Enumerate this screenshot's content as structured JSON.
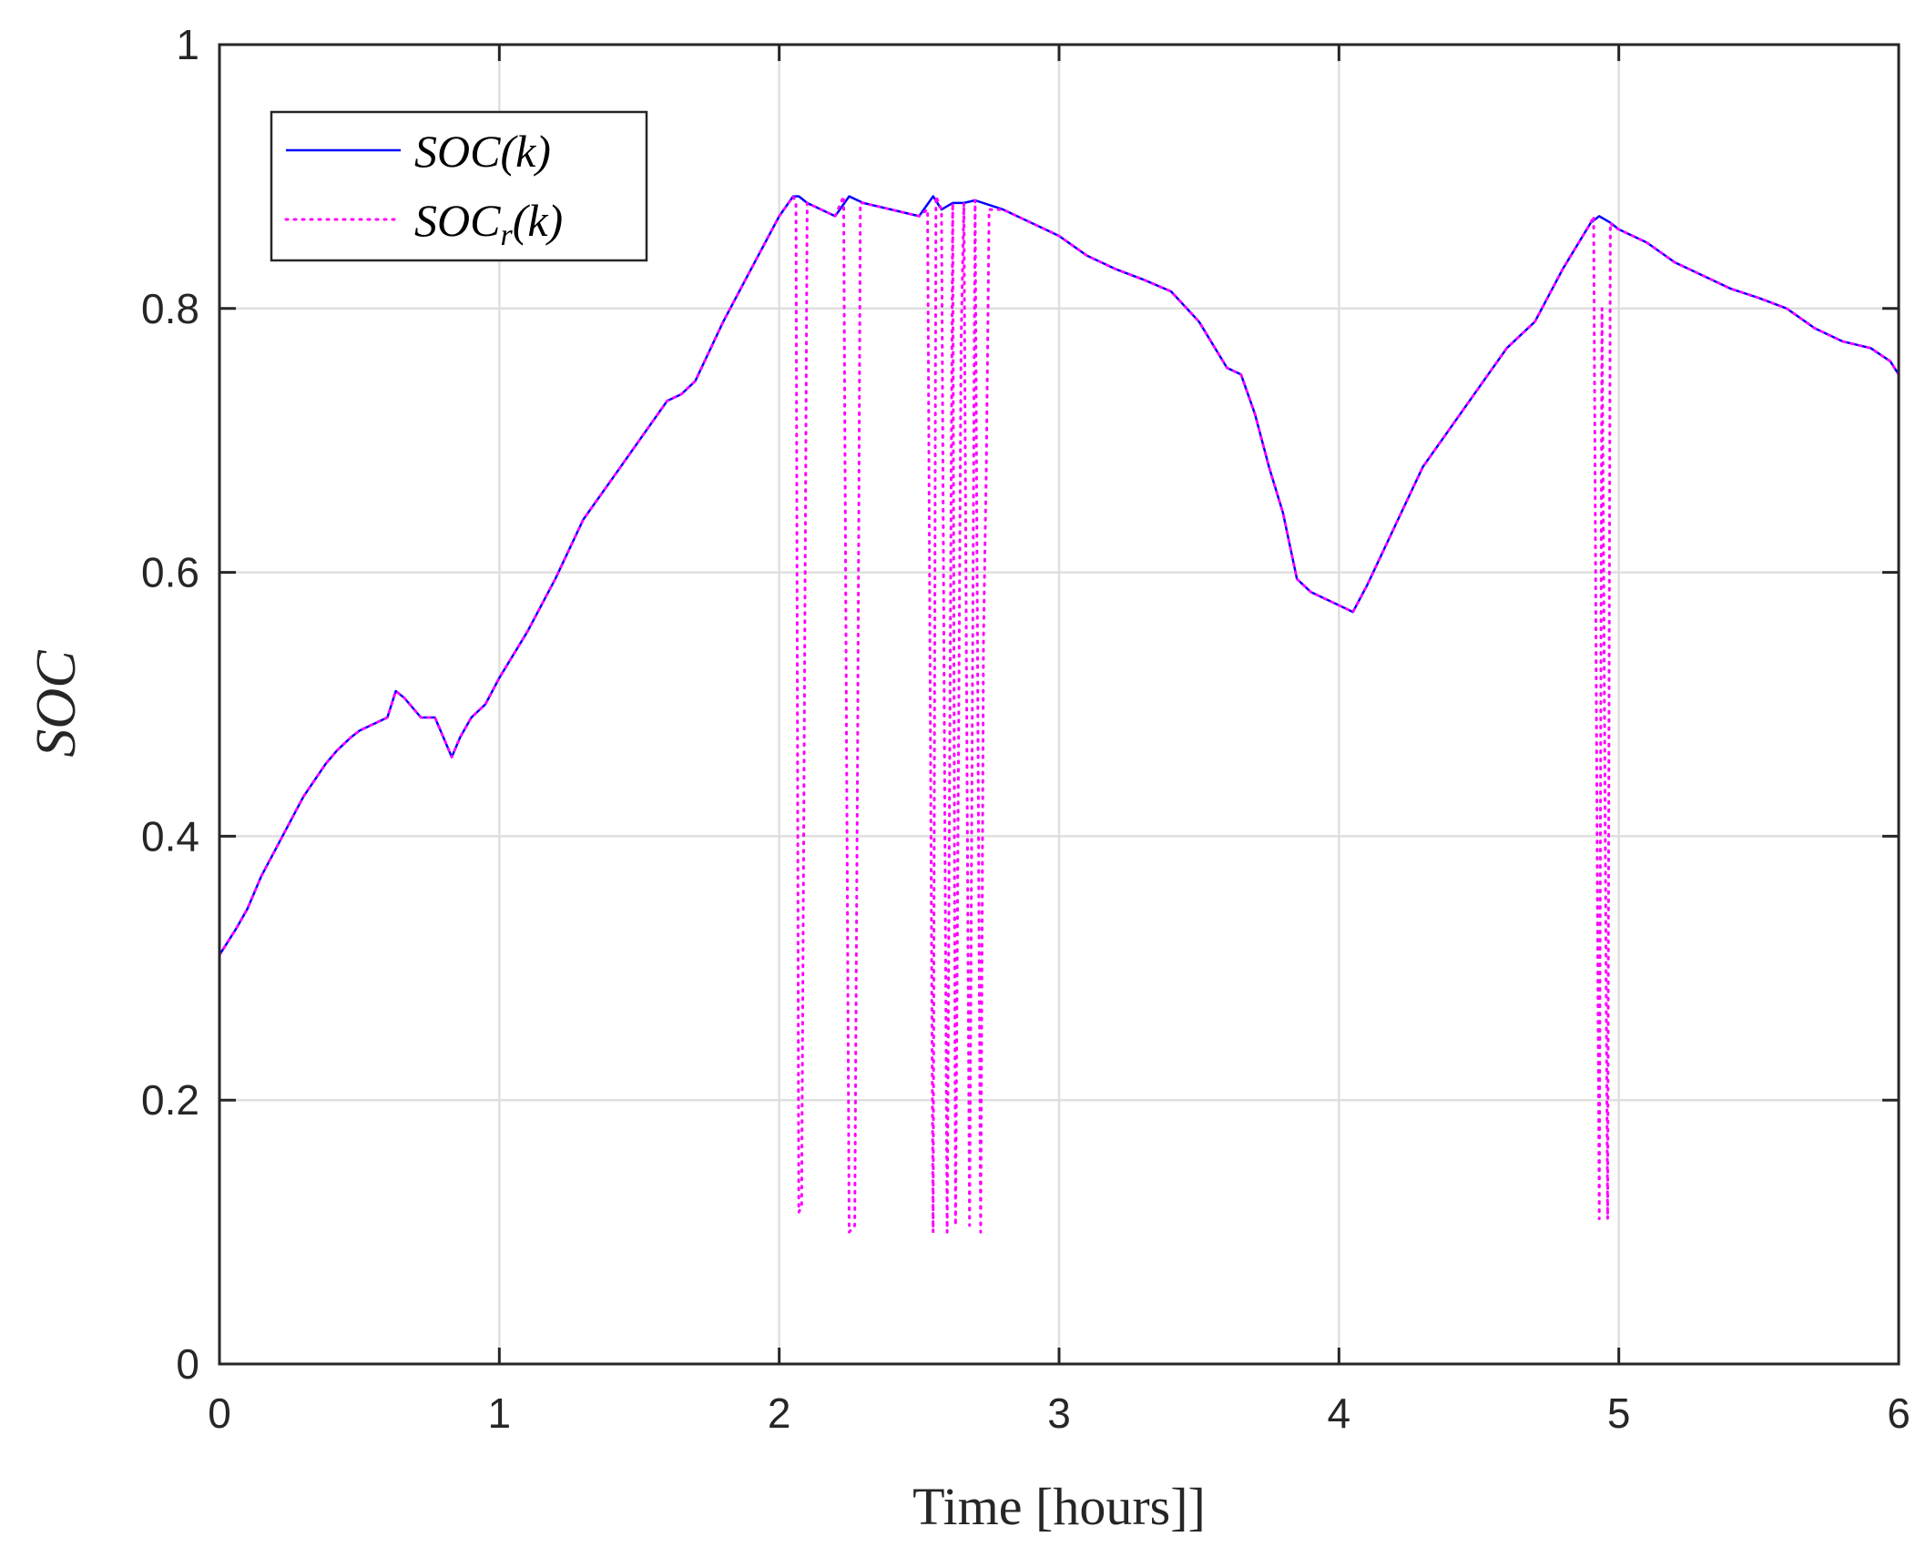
{
  "chart_data": {
    "type": "line",
    "xlabel": "Time [hours]]",
    "ylabel": "SOC",
    "xlim": [
      0,
      6
    ],
    "ylim": [
      0,
      1
    ],
    "xticks": [
      "0",
      "1",
      "2",
      "3",
      "4",
      "5",
      "6"
    ],
    "yticks": [
      "0",
      "0.2",
      "0.4",
      "0.6",
      "0.8",
      "1"
    ],
    "grid": true,
    "legend_position": "top-left",
    "series": [
      {
        "name": "SOC(k)",
        "style": "solid",
        "color": "#0000ff",
        "x": [
          0,
          0.06,
          0.1,
          0.15,
          0.2,
          0.3,
          0.38,
          0.42,
          0.47,
          0.5,
          0.55,
          0.6,
          0.63,
          0.66,
          0.72,
          0.77,
          0.8,
          0.83,
          0.86,
          0.9,
          0.95,
          1.0,
          1.1,
          1.2,
          1.3,
          1.4,
          1.5,
          1.6,
          1.65,
          1.7,
          1.8,
          1.9,
          2.0,
          2.05,
          2.07,
          2.1,
          2.2,
          2.25,
          2.3,
          2.4,
          2.5,
          2.55,
          2.58,
          2.62,
          2.66,
          2.7,
          2.8,
          2.9,
          3.0,
          3.1,
          3.2,
          3.3,
          3.4,
          3.5,
          3.6,
          3.65,
          3.7,
          3.75,
          3.8,
          3.85,
          3.9,
          4.0,
          4.05,
          4.1,
          4.2,
          4.3,
          4.4,
          4.5,
          4.6,
          4.7,
          4.8,
          4.9,
          4.93,
          4.97,
          5.0,
          5.1,
          5.2,
          5.3,
          5.4,
          5.5,
          5.6,
          5.7,
          5.8,
          5.9,
          5.97,
          6.0
        ],
        "y": [
          0.31,
          0.33,
          0.345,
          0.37,
          0.39,
          0.43,
          0.455,
          0.465,
          0.475,
          0.48,
          0.485,
          0.49,
          0.51,
          0.505,
          0.49,
          0.49,
          0.475,
          0.46,
          0.475,
          0.49,
          0.5,
          0.52,
          0.555,
          0.595,
          0.64,
          0.67,
          0.7,
          0.73,
          0.735,
          0.745,
          0.79,
          0.83,
          0.87,
          0.885,
          0.885,
          0.88,
          0.87,
          0.885,
          0.88,
          0.875,
          0.87,
          0.885,
          0.875,
          0.88,
          0.88,
          0.882,
          0.875,
          0.865,
          0.855,
          0.84,
          0.83,
          0.822,
          0.813,
          0.79,
          0.755,
          0.75,
          0.72,
          0.68,
          0.645,
          0.595,
          0.585,
          0.575,
          0.57,
          0.59,
          0.635,
          0.68,
          0.71,
          0.74,
          0.77,
          0.79,
          0.83,
          0.865,
          0.87,
          0.865,
          0.86,
          0.85,
          0.835,
          0.825,
          0.815,
          0.808,
          0.8,
          0.785,
          0.775,
          0.77,
          0.76,
          0.75
        ]
      },
      {
        "name": "SOC_r(k)",
        "style": "dotted",
        "color": "#ff00ff",
        "x": [
          0,
          0.06,
          0.1,
          0.15,
          0.2,
          0.3,
          0.38,
          0.42,
          0.47,
          0.5,
          0.55,
          0.6,
          0.63,
          0.66,
          0.72,
          0.77,
          0.8,
          0.83,
          0.86,
          0.9,
          0.95,
          1.0,
          1.1,
          1.2,
          1.3,
          1.4,
          1.5,
          1.6,
          1.65,
          1.7,
          1.8,
          1.9,
          2.0,
          2.05,
          2.06,
          2.07,
          2.08,
          2.1,
          2.2,
          2.23,
          2.25,
          2.27,
          2.28,
          2.29,
          2.3,
          2.4,
          2.5,
          2.53,
          2.55,
          2.56,
          2.58,
          2.6,
          2.62,
          2.63,
          2.65,
          2.66,
          2.68,
          2.7,
          2.72,
          2.73,
          2.74,
          2.75,
          2.8,
          2.9,
          3.0,
          3.1,
          3.2,
          3.3,
          3.4,
          3.5,
          3.6,
          3.65,
          3.7,
          3.75,
          3.8,
          3.85,
          3.9,
          4.0,
          4.05,
          4.1,
          4.2,
          4.3,
          4.4,
          4.5,
          4.6,
          4.7,
          4.8,
          4.9,
          4.91,
          4.93,
          4.94,
          4.96,
          4.97,
          4.98,
          5.0,
          5.1,
          5.2,
          5.3,
          5.4,
          5.5,
          5.6,
          5.7,
          5.8,
          5.9,
          5.97,
          6.0
        ],
        "y": [
          0.31,
          0.33,
          0.345,
          0.37,
          0.39,
          0.43,
          0.455,
          0.465,
          0.475,
          0.48,
          0.485,
          0.49,
          0.51,
          0.505,
          0.49,
          0.49,
          0.475,
          0.46,
          0.475,
          0.49,
          0.5,
          0.52,
          0.555,
          0.595,
          0.64,
          0.67,
          0.7,
          0.73,
          0.735,
          0.745,
          0.79,
          0.83,
          0.87,
          0.885,
          0.88,
          0.115,
          0.12,
          0.88,
          0.87,
          0.885,
          0.1,
          0.105,
          0.46,
          0.88,
          0.88,
          0.875,
          0.87,
          0.875,
          0.1,
          0.885,
          0.875,
          0.1,
          0.88,
          0.105,
          0.775,
          0.88,
          0.105,
          0.882,
          0.1,
          0.55,
          0.68,
          0.875,
          0.875,
          0.865,
          0.855,
          0.84,
          0.83,
          0.822,
          0.813,
          0.79,
          0.755,
          0.75,
          0.72,
          0.68,
          0.645,
          0.595,
          0.585,
          0.575,
          0.57,
          0.59,
          0.635,
          0.68,
          0.71,
          0.74,
          0.77,
          0.79,
          0.83,
          0.865,
          0.87,
          0.11,
          0.8,
          0.11,
          0.865,
          0.862,
          0.86,
          0.85,
          0.835,
          0.825,
          0.815,
          0.808,
          0.8,
          0.785,
          0.775,
          0.77,
          0.76,
          0.75
        ]
      }
    ]
  },
  "legend": {
    "entries": [
      {
        "base": "SOC",
        "sub": "",
        "suffix": "(k)"
      },
      {
        "base": "SOC",
        "sub": "r",
        "suffix": "(k)"
      }
    ]
  }
}
